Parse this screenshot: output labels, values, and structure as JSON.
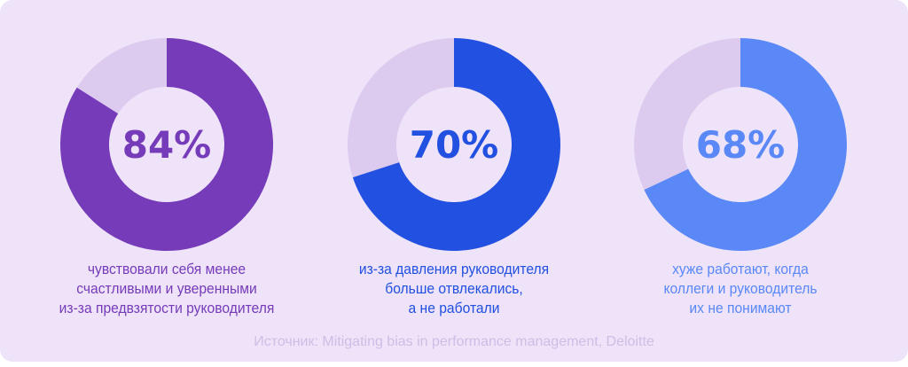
{
  "chart_data": {
    "type": "pie",
    "variant": "donut",
    "items": [
      {
        "value": 84,
        "label": "84%",
        "color": "#763bb8",
        "caption": [
          "чувствовали себя менее",
          "счастливыми и уверенными",
          "из-за предвзятости руководителя"
        ]
      },
      {
        "value": 70,
        "label": "70%",
        "color": "#2250e0",
        "caption": [
          "из-за давления руководителя",
          "больше отвлекались,",
          "а не работали"
        ]
      },
      {
        "value": 68,
        "label": "68%",
        "color": "#5a88f7",
        "caption": [
          "хуже работают, когда",
          "коллеги и руководитель",
          "их не понимают"
        ]
      }
    ],
    "track_color": "#dccbef",
    "source": "Источник: Mitigating bias in performance management, Deloitte"
  }
}
